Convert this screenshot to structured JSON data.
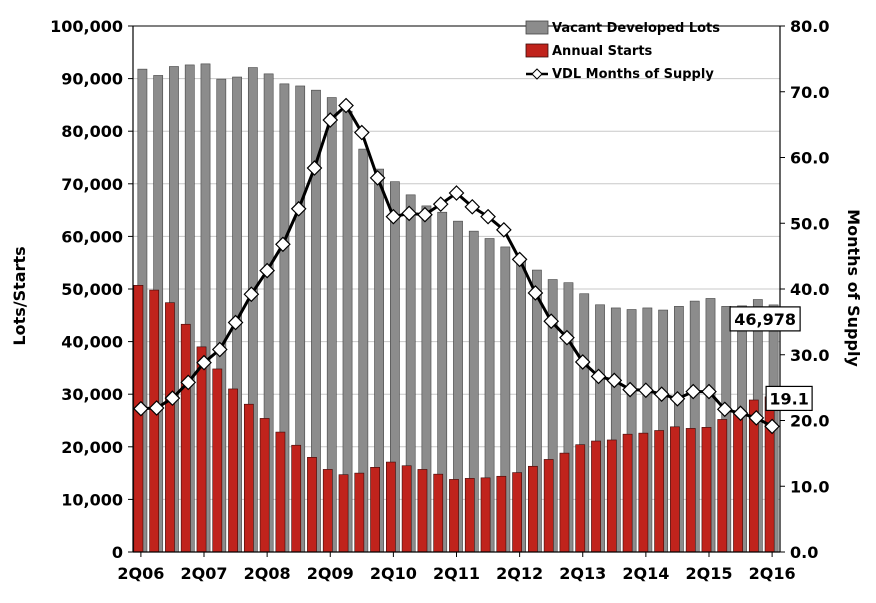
{
  "chart_data": {
    "type": "bar",
    "categories": [
      "2Q06",
      "3Q06",
      "4Q06",
      "1Q07",
      "2Q07",
      "3Q07",
      "4Q07",
      "1Q08",
      "2Q08",
      "3Q08",
      "4Q08",
      "1Q09",
      "2Q09",
      "3Q09",
      "4Q09",
      "1Q10",
      "2Q10",
      "3Q10",
      "4Q10",
      "1Q11",
      "2Q11",
      "3Q11",
      "4Q11",
      "1Q12",
      "2Q12",
      "3Q12",
      "4Q12",
      "1Q13",
      "2Q13",
      "3Q13",
      "4Q13",
      "1Q14",
      "2Q14",
      "3Q14",
      "4Q14",
      "1Q15",
      "2Q15",
      "3Q15",
      "4Q15",
      "1Q16",
      "2Q16"
    ],
    "x_tick_labels": [
      "2Q06",
      "2Q07",
      "2Q08",
      "2Q09",
      "2Q10",
      "2Q11",
      "2Q12",
      "2Q13",
      "2Q14",
      "2Q15",
      "2Q16"
    ],
    "ylabel": "Lots/Starts",
    "y2label": "Months of Supply",
    "ylim": [
      0,
      100000
    ],
    "y2lim": [
      0,
      80
    ],
    "y_ticks": [
      "0",
      "10,000",
      "20,000",
      "30,000",
      "40,000",
      "50,000",
      "60,000",
      "70,000",
      "80,000",
      "90,000",
      "100,000"
    ],
    "y2_ticks": [
      "0.0",
      "10.0",
      "20.0",
      "30.0",
      "40.0",
      "50.0",
      "60.0",
      "70.0",
      "80.0"
    ],
    "grid": true,
    "legend_position": "top-right",
    "series": [
      {
        "name": "Vacant Developed Lots",
        "kind": "bar",
        "axis": "left",
        "color": "#8c8c8c",
        "values": [
          91800,
          90600,
          92300,
          92600,
          92800,
          89900,
          90300,
          92100,
          90900,
          89000,
          88600,
          87800,
          86400,
          83800,
          76600,
          72800,
          70400,
          67900,
          65800,
          64600,
          62900,
          61000,
          59600,
          58000,
          55800,
          53600,
          51800,
          51200,
          49100,
          47000,
          46400,
          46100,
          46400,
          46000,
          46700,
          47700,
          48200,
          46700,
          46800,
          48000,
          46978
        ]
      },
      {
        "name": "Annual Starts",
        "kind": "bar",
        "axis": "left",
        "color": "#c0231c",
        "values": [
          50700,
          49800,
          47400,
          43300,
          39000,
          34800,
          31000,
          28100,
          25400,
          22800,
          20300,
          18000,
          15700,
          14700,
          15000,
          16100,
          17100,
          16400,
          15700,
          14800,
          13800,
          14000,
          14100,
          14400,
          15100,
          16300,
          17600,
          18800,
          20400,
          21100,
          21300,
          22400,
          22600,
          23100,
          23800,
          23500,
          23700,
          25200,
          26400,
          28900,
          29500
        ]
      },
      {
        "name": "VDL Months of Supply",
        "kind": "line",
        "axis": "right",
        "color": "#000000",
        "values": [
          21.8,
          21.9,
          23.4,
          25.8,
          28.8,
          30.8,
          34.9,
          39.2,
          42.8,
          46.8,
          52.2,
          58.4,
          65.7,
          67.9,
          63.8,
          56.9,
          51.0,
          51.5,
          51.3,
          52.9,
          54.6,
          52.5,
          51.0,
          49.0,
          44.5,
          39.4,
          35.1,
          32.6,
          28.9,
          26.7,
          26.1,
          24.7,
          24.6,
          24.0,
          23.3,
          24.4,
          24.4,
          21.7,
          21.1,
          20.4,
          19.1
        ]
      }
    ],
    "annotations": [
      {
        "text": "46,978",
        "series": "Vacant Developed Lots",
        "index": 40
      },
      {
        "text": "19.1",
        "series": "VDL Months of Supply",
        "index": 40
      }
    ]
  }
}
